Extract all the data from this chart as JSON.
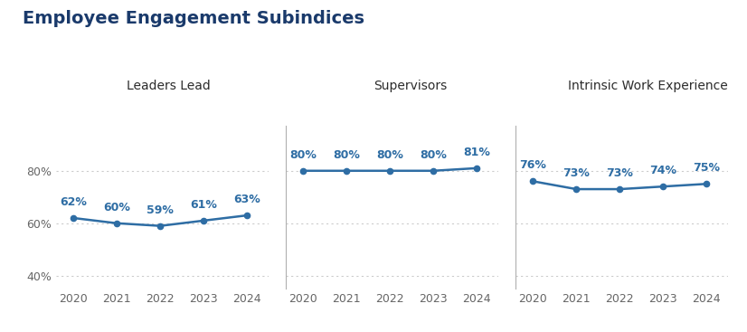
{
  "title": "Employee Engagement Subindices",
  "title_color": "#1a3a6b",
  "title_fontsize": 14,
  "title_fontweight": "bold",
  "background_color": "#ffffff",
  "line_color": "#2e6da4",
  "marker_color": "#2e6da4",
  "text_color": "#2e6da4",
  "years": [
    2020,
    2021,
    2022,
    2023,
    2024
  ],
  "subplots": [
    {
      "subtitle": "Leaders Lead",
      "values": [
        62,
        60,
        59,
        61,
        63
      ]
    },
    {
      "subtitle": "Supervisors",
      "values": [
        80,
        80,
        80,
        80,
        81
      ]
    },
    {
      "subtitle": "Intrinsic Work Experience",
      "values": [
        76,
        73,
        73,
        74,
        75
      ]
    }
  ],
  "ylim": [
    35,
    97
  ],
  "yticks": [
    40,
    60,
    80
  ],
  "ytick_labels": [
    "40%",
    "60%",
    "80%"
  ],
  "divider_color": "#b0b0b0",
  "grid_color": "#cccccc",
  "subtitle_fontsize": 10,
  "subtitle_color": "#2c2c2c",
  "tick_fontsize": 9,
  "annotation_fontsize": 9,
  "annotation_fontweight": "bold"
}
